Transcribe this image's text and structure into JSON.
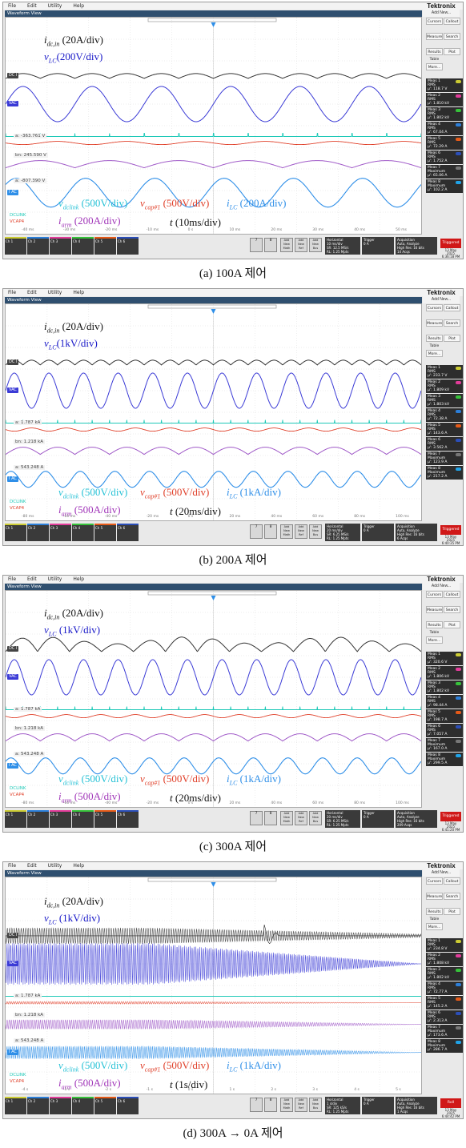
{
  "menu": [
    "File",
    "Edit",
    "Utility",
    "Help"
  ],
  "brand": {
    "name": "Tektronix",
    "sub": "Add New..."
  },
  "window_title": "Waveform View",
  "side_buttons": [
    "Cursors",
    "Callout",
    "Measure",
    "Search",
    "Results Table",
    "Plot",
    "More..."
  ],
  "bottom_buttons": {
    "b7": "7",
    "b8": "8",
    "math": "Add New Math",
    "ref": "Add New Ref",
    "bus": "Add New Bus",
    "horizontal": "Horizontal",
    "trigger": "Trigger",
    "acquisition": "Acquisition",
    "acq_mode": "Auto, Analyze",
    "hires": "High Res: 16 bits"
  },
  "channels": [
    {
      "name": "Ch 1",
      "color": "#cccc33"
    },
    {
      "name": "Ch 2",
      "color": "#2c7fd9"
    },
    {
      "name": "Ch 3",
      "color": "#e23c9a"
    },
    {
      "name": "Ch 4",
      "color": "#36c23a"
    },
    {
      "name": "Ch 5",
      "color": "#e65a18"
    },
    {
      "name": "Ch 6",
      "color": "#2b4eb8"
    }
  ],
  "colors": {
    "idc": "#333333",
    "vlc": "#3b3bd6",
    "dclink": "#1fc9b8",
    "vcap": "#e0402a",
    "iarm": "#a05ac8",
    "ilc": "#2f8fe8",
    "triggered": "#d01818"
  },
  "panels": [
    {
      "caption": "(a)  100A  제어",
      "labels": {
        "idc": "i",
        "idc_sub": "dc,in",
        "idc_scale": " (20A/div)",
        "vlc": "v",
        "vlc_sub": "LC",
        "vlc_scale": "(200V/div)",
        "vdc": "v",
        "vdc_sub": "dclink",
        "vdc_scale": " (500V/div)",
        "vcap": "v",
        "vcap_sub": "cap#1",
        "vcap_scale": " (500V/div)",
        "ilc": "i",
        "ilc_sub": "LC",
        "ilc_scale": " (200A/div)",
        "iarm": "i",
        "iarm_sub": "arm",
        "iarm_scale": " (200A/div)",
        "t": "t",
        "t_scale": " (10ms/div)"
      },
      "trace_names": {
        "dci": "DC I",
        "vac": "VAC",
        "iac": "I AC"
      },
      "offsets": [
        "a: -363.761 V",
        "bn: 245.590 V",
        "a: -807.390 V"
      ],
      "legend": [
        "DCLINK",
        "VCAP4"
      ],
      "horizontal": [
        "10 ms/div",
        "SR: 12.5 MS/s",
        "RL: 1.25 Mpts"
      ],
      "trigger_value": "0 A",
      "acq_count": "14 Acqs",
      "status": "Triggered",
      "date": "13 May 2025 6:36:18 PM",
      "meas": [
        [
          "Meas 1",
          "RMS",
          "μ': 118.7 V"
        ],
        [
          "Meas 2",
          "RMS",
          "μ': 1.810 kV"
        ],
        [
          "Meas 3",
          "RMS",
          "μ': 1.802 kV"
        ],
        [
          "Meas 4",
          "RMS",
          "μ': 67.04 A"
        ],
        [
          "Meas 5",
          "RMS",
          "μ': 72.29 A"
        ],
        [
          "Meas 6",
          "RMS",
          "μ': 1.752 A"
        ],
        [
          "Meas 7",
          "Maximum",
          "μ': 65.06 A"
        ],
        [
          "Meas 8",
          "Maximum",
          "μ': 102.2 A"
        ]
      ],
      "xticks": [
        "-40 ms",
        "-30 ms",
        "-20 ms",
        "-10 ms",
        "0 s",
        "10 ms",
        "20 ms",
        "30 ms",
        "40 ms",
        "50 ms"
      ],
      "cycles": 6,
      "dc_arches": 12
    },
    {
      "caption": "(b)  200A  제어",
      "labels": {
        "idc": "i",
        "idc_sub": "dc,in",
        "idc_scale": " (20A/div)",
        "vlc": "v",
        "vlc_sub": "LC",
        "vlc_scale": "(1kV/div)",
        "vdc": "v",
        "vdc_sub": "dclink",
        "vdc_scale": " (500V/div)",
        "vcap": "v",
        "vcap_sub": "cap#1",
        "vcap_scale": " (500V/div)",
        "ilc": "i",
        "ilc_sub": "LC",
        "ilc_scale": " (1kA/div)",
        "iarm": "i",
        "iarm_sub": "arm",
        "iarm_scale": " (500A/div)",
        "t": "t",
        "t_scale": " (20ms/div)"
      },
      "trace_names": {
        "dci": "DC I",
        "vac": "VAC",
        "iac": "I AC"
      },
      "offsets": [
        "a: 1.787 kA",
        "bn: 1.218 kA",
        "a: 543.248 A"
      ],
      "legend": [
        "DCLINK",
        "VCAP4"
      ],
      "horizontal": [
        "20 ms/div",
        "SR: 6.25 MS/s",
        "RL: 1.25 Mpts"
      ],
      "trigger_value": "0 A",
      "acq_count": "6 Acqs",
      "status": "Triggered",
      "date": "13 May 2025 6:40:35 PM",
      "meas": [
        [
          "Meas 1",
          "RMS",
          "μ': 233.7 V"
        ],
        [
          "Meas 2",
          "RMS",
          "μ': 1.809 kV"
        ],
        [
          "Meas 3",
          "RMS",
          "μ': 1.803 kV"
        ],
        [
          "Meas 4",
          "RMS",
          "μ': 72.38 A"
        ],
        [
          "Meas 5",
          "RMS",
          "μ': 143.6 A"
        ],
        [
          "Meas 6",
          "RMS",
          "μ': 3.562 A"
        ],
        [
          "Meas 7",
          "Maximum",
          "μ': 123.9 A"
        ],
        [
          "Meas 8",
          "Maximum",
          "μ': 217.2 A"
        ]
      ],
      "xticks": [
        "-80 ms",
        "-60 ms",
        "-40 ms",
        "-20 ms",
        "0 s",
        "20 ms",
        "40 ms",
        "60 ms",
        "80 ms",
        "100 ms"
      ],
      "cycles": 12,
      "dc_arches": 24
    },
    {
      "caption": "(c)  300A  제어",
      "labels": {
        "idc": "i",
        "idc_sub": "dc,in",
        "idc_scale": " (20A/div)",
        "vlc": "v",
        "vlc_sub": "LC",
        "vlc_scale": " (1kV/div)",
        "vdc": "v",
        "vdc_sub": "dclink",
        "vdc_scale": " (500V/div)",
        "vcap": "v",
        "vcap_sub": "cap#1",
        "vcap_scale": " (500V/div)",
        "ilc": "i",
        "ilc_sub": "LC",
        "ilc_scale": " (1kA/div)",
        "iarm": "i",
        "iarm_sub": "arm",
        "iarm_scale": " (500A/div)",
        "t": "t",
        "t_scale": " (20ms/div)"
      },
      "trace_names": {
        "dci": "DC I",
        "vac": "VAC",
        "iac": "I AC"
      },
      "offsets": [
        "a: 1.787 kA",
        "bn: 1.218 kA",
        "a: 543.248 A"
      ],
      "legend": [
        "DCLINK",
        "VCAP4"
      ],
      "horizontal": [
        "20 ms/div",
        "SR: 6.25 MS/s",
        "RL: 1.25 Mpts"
      ],
      "trigger_value": "0 A",
      "acq_count": "209 Acqs",
      "status": "Triggered",
      "date": "13 May 2025 6:41:20 PM",
      "meas": [
        [
          "Meas 1",
          "RMS",
          "μ': 320.6 V"
        ],
        [
          "Meas 2",
          "RMS",
          "μ': 1.806 kV"
        ],
        [
          "Meas 3",
          "RMS",
          "μ': 1.802 kV"
        ],
        [
          "Meas 4",
          "RMS",
          "μ': 98.44 A"
        ],
        [
          "Meas 5",
          "RMS",
          "μ': 198.7 A"
        ],
        [
          "Meas 6",
          "RMS",
          "μ': 7.057 A"
        ],
        [
          "Meas 7",
          "Maximum",
          "μ': 167.0 A"
        ],
        [
          "Meas 8",
          "Maximum",
          "μ': 299.5 A"
        ]
      ],
      "xticks": [
        "-80 ms",
        "-60 ms",
        "-40 ms",
        "-20 ms",
        "0 s",
        "20 ms",
        "40 ms",
        "60 ms",
        "80 ms",
        "100 ms"
      ],
      "cycles": 12,
      "dc_arches": 13
    },
    {
      "caption": "(d)  300A  →  0A  제어",
      "labels": {
        "idc": "i",
        "idc_sub": "dc,in",
        "idc_scale": " (20A/div)",
        "vlc": "v",
        "vlc_sub": "LC",
        "vlc_scale": " (1kV/div)",
        "vdc": "v",
        "vdc_sub": "dclink",
        "vdc_scale": " (500V/div)",
        "vcap": "v",
        "vcap_sub": "cap#1",
        "vcap_scale": " (500V/div)",
        "ilc": "i",
        "ilc_sub": "LC",
        "ilc_scale": " (1kA/div)",
        "iarm": "i",
        "iarm_sub": "arm",
        "iarm_scale": " (500A/div)",
        "t": "t",
        "t_scale": " (1s/div)"
      },
      "trace_names": {
        "dci": "DC I",
        "vac": "VAC",
        "iac": "I AC"
      },
      "offsets": [
        "a: 1.787 kA",
        "bn: 1.218 kA",
        "a: 543.248 A"
      ],
      "legend": [
        "DCLINK",
        "VCAP4"
      ],
      "horizontal": [
        "1 s/div",
        "SR: 125 kS/s",
        "RL: 1.25 Mpts"
      ],
      "trigger_value": "0 A",
      "acq_count": "1 Acqs",
      "status": "Roll",
      "date": "13 May 2025 6:44:42 PM",
      "meas": [
        [
          "Meas 1",
          "RMS",
          "μ': 234.8 V"
        ],
        [
          "Meas 2",
          "RMS",
          "μ': 1.808 kV"
        ],
        [
          "Meas 3",
          "RMS",
          "μ': 1.802 kV"
        ],
        [
          "Meas 4",
          "RMS",
          "μ': 72.77 A"
        ],
        [
          "Meas 5",
          "RMS",
          "μ': 145.2 A"
        ],
        [
          "Meas 6",
          "RMS",
          "μ': 2.313 A"
        ],
        [
          "Meas 7",
          "Maximum",
          "μ': 173.6 A"
        ],
        [
          "Meas 8",
          "Maximum",
          "μ': 286.7 A"
        ]
      ],
      "xticks": [
        "-4 s",
        "-3 s",
        "-2 s",
        "-1 s",
        "0 s",
        "1 s",
        "2 s",
        "3 s",
        "4 s",
        "5 s"
      ],
      "cycles": 40,
      "dc_arches": 0
    }
  ]
}
